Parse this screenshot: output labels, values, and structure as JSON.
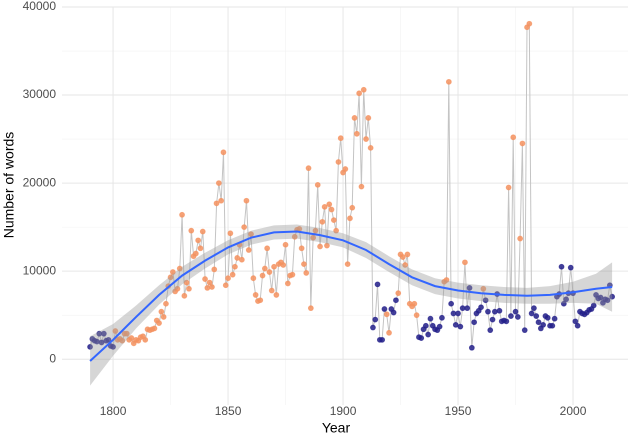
{
  "chart_data": {
    "type": "scatter",
    "x_label": "Year",
    "y_label": "Number of words",
    "xlim": [
      1777.8,
      2023.9
    ],
    "ylim": [
      -5200,
      40000
    ],
    "xticks": [
      1800,
      1850,
      1900,
      1950,
      2000
    ],
    "yticks": [
      0,
      10000,
      20000,
      30000,
      40000
    ],
    "xminor": [
      1825,
      1875,
      1925,
      1975
    ],
    "yminor": [
      5000,
      15000,
      25000,
      35000
    ],
    "grid": true,
    "line_color": "#c4c4c4",
    "group_colors": [
      "#f4925f",
      "#23208a"
    ],
    "x": [
      1790,
      1791,
      1792,
      1793,
      1794,
      1795,
      1796,
      1797,
      1798,
      1799,
      1800,
      1801,
      1802,
      1803,
      1804,
      1805,
      1806,
      1807,
      1808,
      1809,
      1810,
      1811,
      1812,
      1813,
      1814,
      1815,
      1816,
      1817,
      1818,
      1819,
      1820,
      1821,
      1822,
      1823,
      1824,
      1825,
      1826,
      1827,
      1828,
      1829,
      1830,
      1831,
      1832,
      1833,
      1834,
      1835,
      1836,
      1837,
      1838,
      1839,
      1840,
      1841,
      1842,
      1843,
      1844,
      1845,
      1846,
      1847,
      1848,
      1849,
      1850,
      1851,
      1852,
      1853,
      1854,
      1855,
      1856,
      1857,
      1858,
      1859,
      1860,
      1861,
      1862,
      1863,
      1864,
      1865,
      1866,
      1867,
      1868,
      1869,
      1870,
      1871,
      1872,
      1873,
      1874,
      1875,
      1876,
      1877,
      1878,
      1879,
      1880,
      1881,
      1882,
      1883,
      1884,
      1885,
      1886,
      1887,
      1888,
      1889,
      1890,
      1891,
      1892,
      1893,
      1894,
      1895,
      1896,
      1897,
      1898,
      1899,
      1900,
      1901,
      1902,
      1903,
      1904,
      1905,
      1906,
      1907,
      1908,
      1909,
      1910,
      1911,
      1912,
      1913,
      1914,
      1915,
      1916,
      1917,
      1918,
      1919,
      1920,
      1921,
      1922,
      1923,
      1924,
      1925,
      1926,
      1927,
      1928,
      1929,
      1930,
      1931,
      1932,
      1933,
      1934,
      1935,
      1936,
      1937,
      1938,
      1939,
      1940,
      1941,
      1942,
      1943,
      1944,
      1945,
      1946,
      1947,
      1948,
      1949,
      1950,
      1951,
      1952,
      1953,
      1954,
      1955,
      1956,
      1957,
      1958,
      1959,
      1960,
      1961,
      1962,
      1963,
      1964,
      1965,
      1966,
      1967,
      1968,
      1969,
      1970,
      1971,
      1972,
      1973,
      1974,
      1975,
      1976,
      1977,
      1978,
      1979,
      1980,
      1981,
      1982,
      1983,
      1984,
      1985,
      1986,
      1987,
      1988,
      1989,
      1990,
      1991,
      1992,
      1993,
      1994,
      1995,
      1996,
      1997,
      1998,
      1999,
      2000,
      2001,
      2002,
      2003,
      2004,
      2005,
      2006,
      2007,
      2008,
      2009,
      2010,
      2011,
      2012,
      2013,
      2014,
      2015,
      2016,
      2017
    ],
    "values": [
      1400,
      2300,
      2100,
      2000,
      2900,
      1900,
      2900,
      2100,
      2200,
      1500,
      1400,
      3200,
      2200,
      2300,
      2100,
      2900,
      2900,
      2200,
      2400,
      1800,
      2200,
      2100,
      2500,
      2600,
      2200,
      3400,
      3300,
      3400,
      3500,
      4400,
      4100,
      5400,
      4800,
      6300,
      8300,
      9300,
      9900,
      7700,
      8000,
      10300,
      16400,
      7200,
      8700,
      8000,
      14600,
      11700,
      12000,
      13500,
      12600,
      14500,
      9100,
      8100,
      8700,
      8200,
      10200,
      17700,
      20000,
      18000,
      23500,
      8400,
      9200,
      14300,
      9600,
      10500,
      11500,
      13000,
      11300,
      15000,
      18000,
      12400,
      14200,
      9200,
      7300,
      6600,
      6700,
      9500,
      10300,
      12600,
      9900,
      7800,
      10500,
      7300,
      10800,
      11000,
      10700,
      13000,
      8600,
      9500,
      9600,
      13900,
      14700,
      14800,
      12600,
      10800,
      9800,
      21700,
      5800,
      13800,
      14600,
      19800,
      12800,
      15600,
      17300,
      12900,
      17600,
      17000,
      15800,
      14600,
      22400,
      25100,
      21200,
      21600,
      10800,
      16000,
      17200,
      27400,
      25600,
      30200,
      19600,
      30600,
      25000,
      27400,
      24000,
      3600,
      4500,
      8500,
      2200,
      2200,
      5700,
      5100,
      3000,
      5700,
      5300,
      6700,
      7500,
      11900,
      11600,
      10700,
      11900,
      6300,
      6000,
      6300,
      5000,
      2500,
      2400,
      3400,
      3800,
      2800,
      4600,
      3800,
      3400,
      3300,
      3700,
      4700,
      8800,
      9000,
      31500,
      6300,
      5200,
      3900,
      5200,
      3700,
      5800,
      11000,
      5800,
      8100,
      1300,
      4200,
      5200,
      5500,
      5900,
      8000,
      6700,
      5400,
      3300,
      4500,
      5400,
      7400,
      5500,
      4300,
      4400,
      4300,
      19500,
      4900,
      25200,
      5400,
      4800,
      13700,
      24500,
      3300,
      37700,
      38100,
      5200,
      5800,
      4900,
      4200,
      3500,
      3900,
      4900,
      4700,
      3800,
      3800,
      4600,
      7100,
      7400,
      10500,
      6300,
      6800,
      7500,
      10400,
      7500,
      4300,
      3800,
      5400,
      5200,
      5100,
      5300,
      5600,
      5700,
      6100,
      7300,
      6900,
      7000,
      6400,
      6800,
      6700,
      8400,
      7100
    ],
    "group": [
      1,
      1,
      1,
      1,
      1,
      1,
      1,
      1,
      1,
      1,
      1,
      0,
      0,
      0,
      0,
      0,
      0,
      0,
      0,
      0,
      0,
      0,
      0,
      0,
      0,
      0,
      0,
      0,
      0,
      0,
      0,
      0,
      0,
      0,
      0,
      0,
      0,
      0,
      0,
      0,
      0,
      0,
      0,
      0,
      0,
      0,
      0,
      0,
      0,
      0,
      0,
      0,
      0,
      0,
      0,
      0,
      0,
      0,
      0,
      0,
      0,
      0,
      0,
      0,
      0,
      0,
      0,
      0,
      0,
      0,
      0,
      0,
      0,
      0,
      0,
      0,
      0,
      0,
      0,
      0,
      0,
      0,
      0,
      0,
      0,
      0,
      0,
      0,
      0,
      0,
      0,
      0,
      0,
      0,
      0,
      0,
      0,
      0,
      0,
      0,
      0,
      0,
      0,
      0,
      0,
      0,
      0,
      0,
      0,
      0,
      0,
      0,
      0,
      0,
      0,
      0,
      0,
      0,
      0,
      0,
      0,
      0,
      0,
      1,
      1,
      1,
      1,
      1,
      1,
      0,
      0,
      1,
      1,
      1,
      0,
      0,
      0,
      0,
      0,
      0,
      0,
      0,
      0,
      1,
      1,
      1,
      1,
      1,
      1,
      1,
      1,
      1,
      1,
      1,
      0,
      0,
      0,
      1,
      1,
      1,
      1,
      1,
      1,
      0,
      1,
      1,
      1,
      1,
      1,
      1,
      1,
      0,
      1,
      1,
      1,
      1,
      1,
      1,
      1,
      1,
      1,
      1,
      0,
      1,
      0,
      1,
      1,
      0,
      0,
      1,
      0,
      0,
      1,
      1,
      1,
      1,
      1,
      1,
      1,
      1,
      1,
      1,
      1,
      1,
      1,
      1,
      1,
      1,
      1,
      1,
      1,
      1,
      1,
      1,
      1,
      1,
      1,
      1,
      1,
      1,
      1,
      1,
      1,
      1,
      1,
      1,
      1,
      1
    ],
    "smooth": {
      "color": "#3366ff",
      "band_color": "#999999",
      "x": [
        1790,
        1800,
        1810,
        1820,
        1830,
        1840,
        1850,
        1860,
        1870,
        1880,
        1890,
        1900,
        1910,
        1920,
        1930,
        1940,
        1950,
        1960,
        1970,
        1980,
        1990,
        2000,
        2010,
        2017
      ],
      "values": [
        -200,
        2200,
        4800,
        7300,
        9500,
        11200,
        12700,
        13800,
        14400,
        14500,
        14100,
        13500,
        12400,
        10800,
        9300,
        8300,
        7800,
        7500,
        7300,
        7200,
        7300,
        7600,
        8000,
        8200
      ],
      "lower": [
        -3000,
        400,
        3500,
        6200,
        8500,
        10300,
        11900,
        13000,
        13600,
        13700,
        13300,
        12700,
        11500,
        9900,
        8400,
        7400,
        6900,
        6600,
        6400,
        6300,
        6300,
        6400,
        6300,
        5400
      ],
      "upper": [
        2600,
        4000,
        6100,
        8400,
        10500,
        12100,
        13500,
        14600,
        15200,
        15300,
        14900,
        14300,
        13300,
        11700,
        10200,
        9200,
        8700,
        8400,
        8200,
        8100,
        8300,
        8800,
        9700,
        11000
      ]
    }
  }
}
